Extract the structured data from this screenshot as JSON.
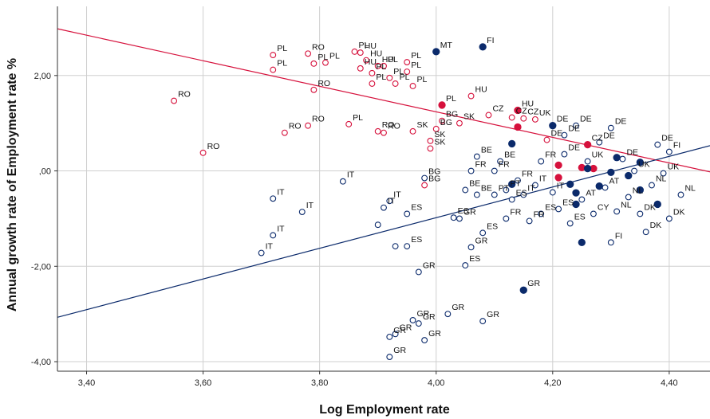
{
  "chart_data": {
    "type": "scatter",
    "title": "",
    "xlabel": "Log Employment rate",
    "ylabel": "Annual growth rate of Employment rate %",
    "xlim": [
      3.35,
      4.47
    ],
    "ylim": [
      -4.2,
      3.45
    ],
    "grid": true,
    "x_ticks": [
      {
        "value": 3.4,
        "label": "3,40"
      },
      {
        "value": 3.6,
        "label": "3,60"
      },
      {
        "value": 3.8,
        "label": "3,80"
      },
      {
        "value": 4.0,
        "label": "4,00"
      },
      {
        "value": 4.2,
        "label": "4,20"
      },
      {
        "value": 4.4,
        "label": "4,40"
      }
    ],
    "y_ticks": [
      {
        "value": 2.0,
        "label": "2,00"
      },
      {
        "value": 0.0,
        "label": ",00"
      },
      {
        "value": -2.0,
        "label": "-2,00"
      },
      {
        "value": -4.0,
        "label": "-4,00"
      }
    ],
    "colors": {
      "red": "#d6113c",
      "blue": "#0b2a6b",
      "grid": "#cfcfcf",
      "axis": "#333333"
    },
    "fit_lines": [
      {
        "color": "red",
        "x": [
          3.35,
          4.47
        ],
        "y": [
          2.98,
          -0.02
        ]
      },
      {
        "color": "blue",
        "x": [
          3.35,
          4.47
        ],
        "y": [
          -3.07,
          0.53
        ]
      }
    ],
    "series": [
      {
        "color": "red",
        "filled": false,
        "points": [
          {
            "x": 3.55,
            "y": 1.47,
            "label": "RO"
          },
          {
            "x": 3.6,
            "y": 0.38,
            "label": "RO"
          },
          {
            "x": 3.72,
            "y": 2.43,
            "label": "PL"
          },
          {
            "x": 3.72,
            "y": 2.12,
            "label": "PL"
          },
          {
            "x": 3.74,
            "y": 0.8,
            "label": "RO"
          },
          {
            "x": 3.78,
            "y": 2.46,
            "label": "RO"
          },
          {
            "x": 3.78,
            "y": 0.95,
            "label": "RO"
          },
          {
            "x": 3.79,
            "y": 2.25,
            "label": "PL"
          },
          {
            "x": 3.79,
            "y": 1.7,
            "label": "RO"
          },
          {
            "x": 3.81,
            "y": 2.27,
            "label": "PL"
          },
          {
            "x": 3.85,
            "y": 0.98,
            "label": "PL"
          },
          {
            "x": 3.86,
            "y": 2.5,
            "label": "PL"
          },
          {
            "x": 3.87,
            "y": 2.48,
            "label": "HU"
          },
          {
            "x": 3.87,
            "y": 2.15,
            "label": "HU"
          },
          {
            "x": 3.88,
            "y": 2.32,
            "label": "HU"
          },
          {
            "x": 3.89,
            "y": 2.05,
            "label": "PL"
          },
          {
            "x": 3.89,
            "y": 1.83,
            "label": "PL"
          },
          {
            "x": 3.9,
            "y": 0.83,
            "label": "RO"
          },
          {
            "x": 3.9,
            "y": 2.2,
            "label": "HU"
          },
          {
            "x": 3.91,
            "y": 0.8,
            "label": "RO"
          },
          {
            "x": 3.91,
            "y": 2.2,
            "label": "PL"
          },
          {
            "x": 3.92,
            "y": 1.95,
            "label": "PL"
          },
          {
            "x": 3.93,
            "y": 1.83,
            "label": "PL"
          },
          {
            "x": 3.95,
            "y": 2.28,
            "label": "PL"
          },
          {
            "x": 3.95,
            "y": 2.08,
            "label": "PL"
          },
          {
            "x": 3.96,
            "y": 1.78,
            "label": "PL"
          },
          {
            "x": 3.96,
            "y": 0.83,
            "label": "SK"
          },
          {
            "x": 3.99,
            "y": 0.63,
            "label": "SK"
          },
          {
            "x": 3.99,
            "y": 0.47,
            "label": "SK"
          },
          {
            "x": 4.0,
            "y": 0.88,
            "label": "BG"
          },
          {
            "x": 4.01,
            "y": 1.05,
            "label": "BG"
          },
          {
            "x": 3.98,
            "y": -0.3,
            "label": "BG"
          },
          {
            "x": 4.04,
            "y": 1.0,
            "label": "SK"
          },
          {
            "x": 4.06,
            "y": 1.57,
            "label": "HU"
          },
          {
            "x": 4.09,
            "y": 1.17,
            "label": "CZ"
          },
          {
            "x": 4.13,
            "y": 1.12,
            "label": "CZ"
          },
          {
            "x": 4.15,
            "y": 1.1,
            "label": "CZ"
          },
          {
            "x": 4.17,
            "y": 1.08,
            "label": "UK"
          },
          {
            "x": 4.19,
            "y": 0.65,
            "label": "DE"
          }
        ]
      },
      {
        "color": "red",
        "filled": true,
        "points": [
          {
            "x": 4.01,
            "y": 1.38,
            "label": "PL"
          },
          {
            "x": 4.14,
            "y": 1.27,
            "label": "HU"
          },
          {
            "x": 4.14,
            "y": 0.92,
            "label": ""
          },
          {
            "x": 4.21,
            "y": 0.12,
            "label": ""
          },
          {
            "x": 4.21,
            "y": -0.14,
            "label": ""
          },
          {
            "x": 4.25,
            "y": 0.07,
            "label": ""
          },
          {
            "x": 4.26,
            "y": 0.55,
            "label": "CZ"
          },
          {
            "x": 4.27,
            "y": 0.05,
            "label": ""
          }
        ]
      },
      {
        "color": "blue",
        "filled": false,
        "points": [
          {
            "x": 3.7,
            "y": -1.72,
            "label": "IT"
          },
          {
            "x": 3.72,
            "y": -0.58,
            "label": "IT"
          },
          {
            "x": 3.72,
            "y": -1.35,
            "label": "IT"
          },
          {
            "x": 3.77,
            "y": -0.86,
            "label": "IT"
          },
          {
            "x": 3.84,
            "y": -0.22,
            "label": "IT"
          },
          {
            "x": 3.9,
            "y": -1.13,
            "label": ""
          },
          {
            "x": 3.91,
            "y": -0.77,
            "label": "IT"
          },
          {
            "x": 3.92,
            "y": -0.63,
            "label": "IT"
          },
          {
            "x": 3.93,
            "y": -1.58,
            "label": ""
          },
          {
            "x": 3.95,
            "y": -0.9,
            "label": "ES"
          },
          {
            "x": 3.95,
            "y": -1.58,
            "label": "ES"
          },
          {
            "x": 3.97,
            "y": -2.12,
            "label": "GR"
          },
          {
            "x": 3.98,
            "y": -0.15,
            "label": "BG"
          },
          {
            "x": 4.03,
            "y": -0.98,
            "label": "ES"
          },
          {
            "x": 4.04,
            "y": -1.0,
            "label": "GR"
          },
          {
            "x": 4.06,
            "y": -1.6,
            "label": "GR"
          },
          {
            "x": 4.05,
            "y": -1.98,
            "label": "ES"
          },
          {
            "x": 4.07,
            "y": -0.5,
            "label": "BE"
          },
          {
            "x": 4.08,
            "y": -1.3,
            "label": "ES"
          },
          {
            "x": 4.1,
            "y": -0.5,
            "label": "PT"
          },
          {
            "x": 4.12,
            "y": -1.0,
            "label": "FR"
          },
          {
            "x": 4.12,
            "y": -0.4,
            "label": "PT"
          },
          {
            "x": 4.05,
            "y": -0.4,
            "label": "BE"
          },
          {
            "x": 4.06,
            "y": 0.0,
            "label": "FR"
          },
          {
            "x": 4.07,
            "y": 0.3,
            "label": "BE"
          },
          {
            "x": 4.1,
            "y": 0.0,
            "label": "FR"
          },
          {
            "x": 4.11,
            "y": 0.2,
            "label": "BE"
          },
          {
            "x": 4.13,
            "y": -0.6,
            "label": "ES"
          },
          {
            "x": 4.14,
            "y": -0.2,
            "label": "FR"
          },
          {
            "x": 4.15,
            "y": -0.5,
            "label": "IT"
          },
          {
            "x": 4.16,
            "y": -1.05,
            "label": "FR"
          },
          {
            "x": 4.17,
            "y": -0.3,
            "label": "IT"
          },
          {
            "x": 4.18,
            "y": -0.9,
            "label": "ES"
          },
          {
            "x": 4.18,
            "y": 0.2,
            "label": "FR"
          },
          {
            "x": 4.2,
            "y": -0.45,
            "label": "IT"
          },
          {
            "x": 4.21,
            "y": -0.8,
            "label": "ES"
          },
          {
            "x": 4.22,
            "y": 0.35,
            "label": "DE"
          },
          {
            "x": 4.22,
            "y": 0.75,
            "label": "DE"
          },
          {
            "x": 4.23,
            "y": -1.1,
            "label": "ES"
          },
          {
            "x": 4.24,
            "y": 0.95,
            "label": "DE"
          },
          {
            "x": 4.25,
            "y": -0.6,
            "label": "AT"
          },
          {
            "x": 4.26,
            "y": 0.2,
            "label": "UK"
          },
          {
            "x": 4.27,
            "y": -0.9,
            "label": "CY"
          },
          {
            "x": 4.28,
            "y": 0.6,
            "label": "DE"
          },
          {
            "x": 4.29,
            "y": -0.35,
            "label": "AT"
          },
          {
            "x": 4.3,
            "y": 0.9,
            "label": "DE"
          },
          {
            "x": 4.31,
            "y": -0.85,
            "label": "NL"
          },
          {
            "x": 4.32,
            "y": 0.25,
            "label": "DE"
          },
          {
            "x": 4.33,
            "y": -0.55,
            "label": "NL"
          },
          {
            "x": 4.34,
            "y": 0.0,
            "label": "UK"
          },
          {
            "x": 4.35,
            "y": -0.9,
            "label": "DK"
          },
          {
            "x": 4.37,
            "y": -0.3,
            "label": "NL"
          },
          {
            "x": 4.38,
            "y": 0.55,
            "label": "DE"
          },
          {
            "x": 4.39,
            "y": -0.05,
            "label": "UK"
          },
          {
            "x": 4.4,
            "y": 0.4,
            "label": "FI"
          },
          {
            "x": 4.4,
            "y": -1.0,
            "label": "DK"
          },
          {
            "x": 4.42,
            "y": -0.5,
            "label": "NL"
          },
          {
            "x": 4.36,
            "y": -1.28,
            "label": "DK"
          },
          {
            "x": 4.3,
            "y": -1.5,
            "label": "FI"
          },
          {
            "x": 4.08,
            "y": -3.15,
            "label": "GR"
          },
          {
            "x": 4.02,
            "y": -3.0,
            "label": "GR"
          },
          {
            "x": 3.97,
            "y": -3.2,
            "label": "GR"
          },
          {
            "x": 3.96,
            "y": -3.13,
            "label": "GR"
          },
          {
            "x": 3.93,
            "y": -3.42,
            "label": "GR"
          },
          {
            "x": 3.92,
            "y": -3.48,
            "label": "GR"
          },
          {
            "x": 3.98,
            "y": -3.55,
            "label": "GR"
          },
          {
            "x": 3.92,
            "y": -3.9,
            "label": "GR"
          }
        ]
      },
      {
        "color": "blue",
        "filled": true,
        "points": [
          {
            "x": 4.0,
            "y": 2.5,
            "label": "MT"
          },
          {
            "x": 4.08,
            "y": 2.6,
            "label": "FI"
          },
          {
            "x": 4.13,
            "y": 0.57,
            "label": ""
          },
          {
            "x": 4.13,
            "y": -0.28,
            "label": ""
          },
          {
            "x": 4.2,
            "y": 0.95,
            "label": "DE"
          },
          {
            "x": 4.23,
            "y": -0.28,
            "label": ""
          },
          {
            "x": 4.24,
            "y": -0.46,
            "label": ""
          },
          {
            "x": 4.24,
            "y": -0.7,
            "label": ""
          },
          {
            "x": 4.25,
            "y": -1.5,
            "label": ""
          },
          {
            "x": 4.26,
            "y": 0.05,
            "label": ""
          },
          {
            "x": 4.28,
            "y": -0.32,
            "label": ""
          },
          {
            "x": 4.3,
            "y": -0.03,
            "label": ""
          },
          {
            "x": 4.31,
            "y": 0.28,
            "label": ""
          },
          {
            "x": 4.33,
            "y": -0.1,
            "label": ""
          },
          {
            "x": 4.35,
            "y": 0.18,
            "label": ""
          },
          {
            "x": 4.35,
            "y": -0.4,
            "label": ""
          },
          {
            "x": 4.38,
            "y": -0.7,
            "label": ""
          },
          {
            "x": 4.15,
            "y": -2.5,
            "label": "GR"
          }
        ]
      }
    ]
  }
}
